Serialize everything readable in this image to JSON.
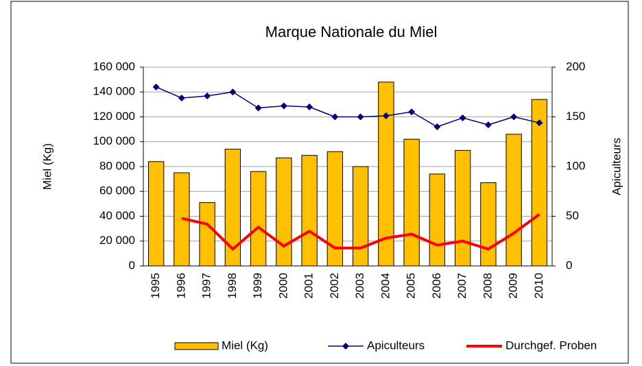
{
  "chart_data": {
    "type": "bar",
    "title": "Marque Nationale du Miel",
    "ylabel": "Miel (Kg)",
    "y2label": "Apiculteurs",
    "categories": [
      "1995",
      "1996",
      "1997",
      "1998",
      "1999",
      "2000",
      "2001",
      "2002",
      "2003",
      "2004",
      "2005",
      "2006",
      "2007",
      "2008",
      "2009",
      "2010"
    ],
    "series": [
      {
        "name": "Miel (Kg)",
        "type": "bar",
        "color": "#ffc000",
        "values": [
          84000,
          75000,
          51000,
          94000,
          76000,
          87000,
          89000,
          92000,
          80000,
          148000,
          102000,
          74000,
          93000,
          67000,
          106000,
          134000
        ]
      },
      {
        "name": "Apiculteurs",
        "type": "line",
        "marker": "diamond",
        "axis": "y2",
        "color": "#000080",
        "values": [
          180,
          169,
          171,
          175,
          159,
          161,
          160,
          150,
          150,
          151,
          155,
          140,
          149,
          142,
          150,
          144
        ]
      },
      {
        "name": "Durchgef. Proben",
        "type": "line",
        "axis": "y2",
        "color": "#ff0000",
        "values": [
          null,
          48,
          42,
          17,
          39,
          20,
          35,
          18,
          18,
          28,
          32,
          21,
          25,
          17,
          33,
          52
        ]
      }
    ],
    "ylim": [
      0,
      160000
    ],
    "yticks": [
      {
        "value": 0,
        "label": "0"
      },
      {
        "value": 20000,
        "label": "20 000"
      },
      {
        "value": 40000,
        "label": "40 000"
      },
      {
        "value": 60000,
        "label": "60 000"
      },
      {
        "value": 80000,
        "label": "80 000"
      },
      {
        "value": 100000,
        "label": "100 000"
      },
      {
        "value": 120000,
        "label": "120 000"
      },
      {
        "value": 140000,
        "label": "140 000"
      },
      {
        "value": 160000,
        "label": "160 000"
      }
    ],
    "y2lim": [
      0,
      200
    ],
    "y2ticks": [
      0,
      50,
      100,
      150,
      200
    ],
    "grid": true,
    "legend": "bottom"
  }
}
